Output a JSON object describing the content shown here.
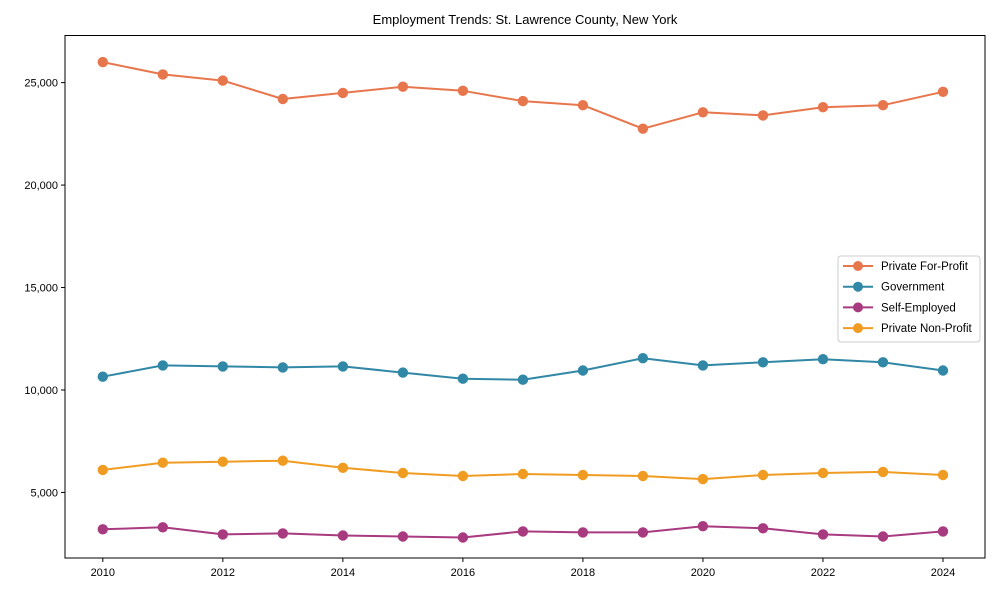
{
  "chart_data": {
    "type": "line",
    "title": "Employment Trends: St. Lawrence County, New York",
    "xlabel": "",
    "ylabel": "",
    "x": [
      2010,
      2011,
      2012,
      2013,
      2014,
      2015,
      2016,
      2017,
      2018,
      2019,
      2020,
      2021,
      2022,
      2023,
      2024
    ],
    "series": [
      {
        "name": "Private For-Profit",
        "color": "#e8764d",
        "values": [
          26000,
          25400,
          25100,
          24200,
          24500,
          24800,
          24600,
          24100,
          23900,
          22750,
          23550,
          23400,
          23800,
          23900,
          24550
        ]
      },
      {
        "name": "Government",
        "color": "#3187a6",
        "values": [
          10650,
          11200,
          11150,
          11100,
          11150,
          10850,
          10550,
          10500,
          10950,
          11550,
          11200,
          11350,
          11500,
          11350,
          10950
        ]
      },
      {
        "name": "Self-Employed",
        "color": "#a83a80",
        "values": [
          3200,
          3300,
          2950,
          3000,
          2900,
          2850,
          2800,
          3100,
          3050,
          3050,
          3350,
          3250,
          2950,
          2850,
          3100
        ]
      },
      {
        "name": "Private Non-Profit",
        "color": "#f09c22",
        "values": [
          6100,
          6450,
          6500,
          6550,
          6200,
          5950,
          5800,
          5900,
          5850,
          5800,
          5650,
          5850,
          5950,
          6000,
          5850
        ]
      }
    ],
    "xticks": [
      2010,
      2012,
      2014,
      2016,
      2018,
      2020,
      2022,
      2024
    ],
    "yticks": [
      5000,
      10000,
      15000,
      20000,
      25000
    ],
    "ytick_labels": [
      "5,000",
      "10,000",
      "15,000",
      "20,000",
      "25,000"
    ],
    "xlim": [
      2009.37,
      2024.7
    ],
    "ylim": [
      1800,
      27300
    ],
    "grid": false,
    "legend_position": "center-right",
    "legend_entries": [
      "Private For-Profit",
      "Government",
      "Self-Employed",
      "Private Non-Profit"
    ],
    "marker": "circle",
    "axis_color": "#000000",
    "background": "#ffffff"
  }
}
